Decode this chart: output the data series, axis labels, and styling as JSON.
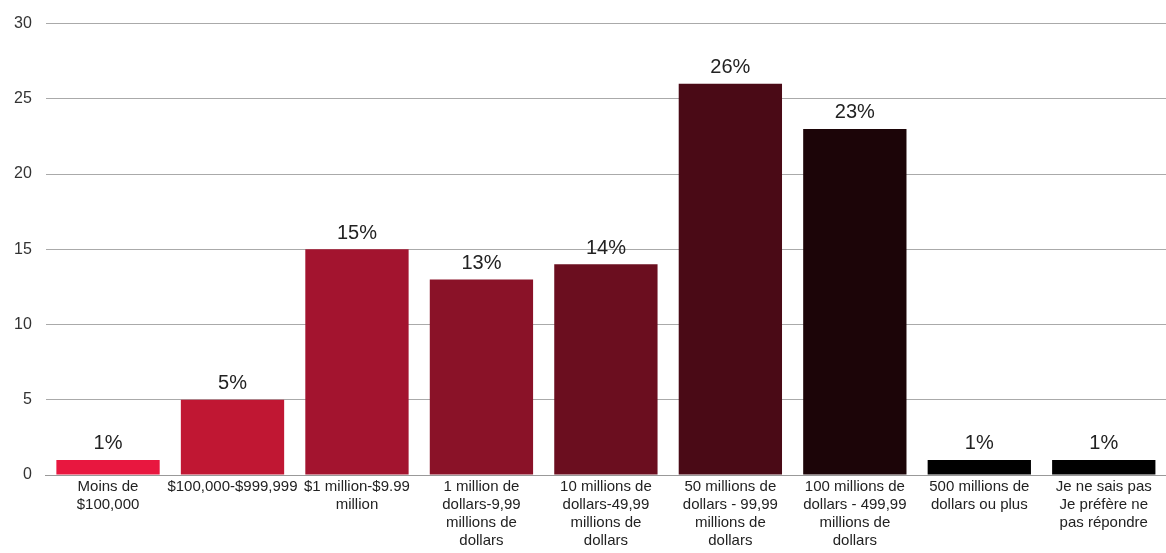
{
  "chart_data": {
    "type": "bar",
    "categories": [
      "Moins de $100,000",
      "$100,000-$999,999",
      "$1 million-$9.99 million",
      "1 million de dollars-9,99 millions de dollars",
      "10 millions de dollars-49,99 millions de dollars",
      "50 millions de dollars - 99,99 millions de dollars",
      "100 millions de dollars - 499,99 millions de dollars",
      "500 millions de dollars ou plus",
      "Je ne sais pas Je préfère ne pas répondre"
    ],
    "values": [
      1,
      5,
      15,
      13,
      14,
      26,
      23,
      1,
      1
    ],
    "value_labels": [
      "1%",
      "5%",
      "15%",
      "13%",
      "14%",
      "26%",
      "23%",
      "1%",
      "1%"
    ],
    "colors": [
      "#e8173f",
      "#c01733",
      "#a3142f",
      "#8a1228",
      "#6b0e1f",
      "#4a0a16",
      "#1c0508",
      "#000000",
      "#000000"
    ],
    "ylim": [
      0,
      30
    ],
    "yticks": [
      0,
      5,
      10,
      15,
      20,
      25,
      30
    ],
    "grid": "y"
  }
}
